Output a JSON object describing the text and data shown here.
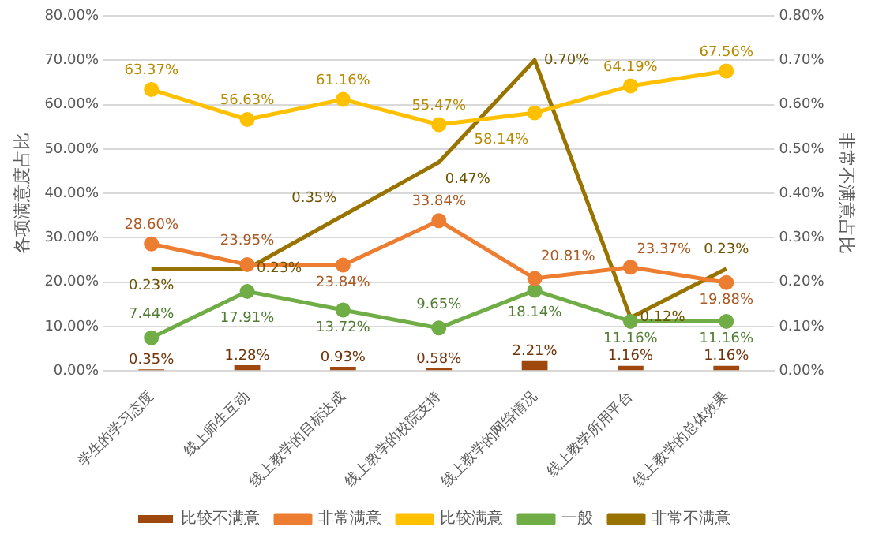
{
  "chart_data": {
    "type": "line",
    "ylabel": "各项满意度占比",
    "y2label": "非常不满意占比",
    "categories": [
      "学生的学习态度",
      "线上师生互动",
      "线上教学的目标达成",
      "线上教学的校院支持",
      "线上教学的网络情况",
      "线上教学所用平台",
      "线上教学的总体效果"
    ],
    "series": [
      {
        "name": "比较不满意",
        "type": "bar",
        "color": "#9e480e",
        "values": [
          0.35,
          1.28,
          0.93,
          0.58,
          2.21,
          1.16,
          1.16
        ],
        "value_labels": [
          "0.35%",
          "1.28%",
          "0.93%",
          "0.58%",
          "2.21%",
          "1.16%",
          "1.16%"
        ]
      },
      {
        "name": "非常满意",
        "color": "#ed7d31",
        "marker": "circle",
        "values": [
          28.6,
          23.95,
          23.84,
          33.84,
          20.81,
          23.37,
          19.88
        ],
        "value_labels": [
          "28.60%",
          "23.95%",
          "23.84%",
          "33.84%",
          "20.81%",
          "23.37%",
          "19.88%"
        ]
      },
      {
        "name": "比较满意",
        "color": "#ffc000",
        "marker": "circle",
        "values": [
          63.37,
          56.63,
          61.16,
          55.47,
          58.14,
          64.19,
          67.56
        ],
        "value_labels": [
          "63.37%",
          "56.63%",
          "61.16%",
          "55.47%",
          "58.14%",
          "64.19%",
          "67.56%"
        ]
      },
      {
        "name": "一般",
        "color": "#70ad47",
        "marker": "circle",
        "values": [
          7.44,
          17.91,
          13.72,
          9.65,
          18.14,
          11.16,
          11.16
        ],
        "value_labels": [
          "7.44%",
          "17.91%",
          "13.72%",
          "9.65%",
          "18.14%",
          "11.16%",
          "11.16%"
        ]
      },
      {
        "name": "非常不满意",
        "axis": "y2",
        "color": "#997300",
        "marker": "none",
        "values": [
          0.23,
          0.23,
          0.35,
          0.47,
          0.7,
          0.12,
          0.23
        ],
        "value_labels": [
          "0.23%",
          "0.23%",
          "0.35%",
          "0.47%",
          "0.70%",
          "0.12%",
          "0.23%"
        ]
      }
    ],
    "ylim": [
      0,
      80
    ],
    "yticks": [
      {
        "value": 0,
        "label": "0.00%"
      },
      {
        "value": 10,
        "label": "10.00%"
      },
      {
        "value": 20,
        "label": "20.00%"
      },
      {
        "value": 30,
        "label": "30.00%"
      },
      {
        "value": 40,
        "label": "40.00%"
      },
      {
        "value": 50,
        "label": "50.00%"
      },
      {
        "value": 60,
        "label": "60.00%"
      },
      {
        "value": 70,
        "label": "70.00%"
      },
      {
        "value": 80,
        "label": "80.00%"
      }
    ],
    "y2lim": [
      0,
      0.8
    ],
    "y2ticks": [
      {
        "value": 0,
        "label": "0.00%"
      },
      {
        "value": 0.1,
        "label": "0.10%"
      },
      {
        "value": 0.2,
        "label": "0.20%"
      },
      {
        "value": 0.3,
        "label": "0.30%"
      },
      {
        "value": 0.4,
        "label": "0.40%"
      },
      {
        "value": 0.5,
        "label": "0.50%"
      },
      {
        "value": 0.6,
        "label": "0.60%"
      },
      {
        "value": 0.7,
        "label": "0.70%"
      },
      {
        "value": 0.8,
        "label": "0.80%"
      }
    ],
    "grid": "y",
    "legend": "bottom",
    "line_style": "solid"
  }
}
